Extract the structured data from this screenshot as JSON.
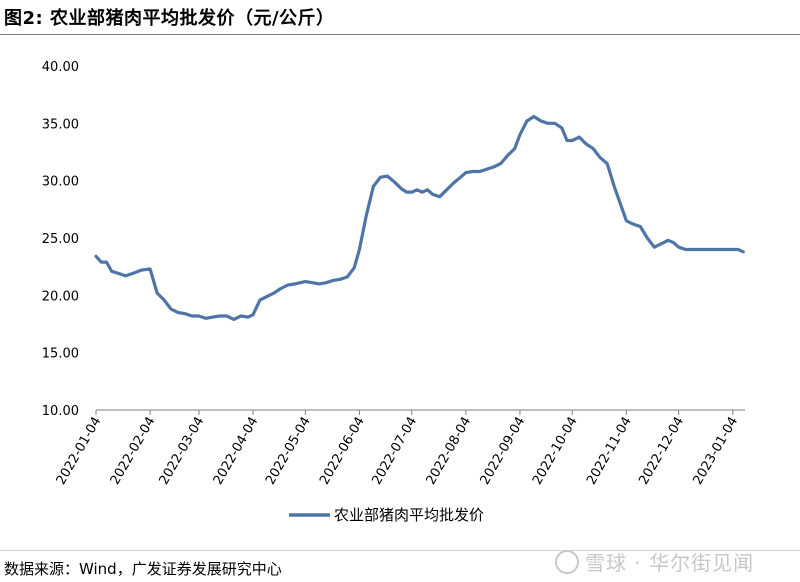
{
  "figure": {
    "title": "图2:  农业部猪肉平均批发价（元/公斤）",
    "source": "数据来源：Wind，广发证券发展研究中心",
    "watermark": "雪球 · 华尔街见闻"
  },
  "chart_data": {
    "type": "line",
    "title": "图2:  农业部猪肉平均批发价（元/公斤）",
    "ylabel": "",
    "xlabel": "",
    "ylim": [
      10,
      40
    ],
    "yticks": [
      "10.00",
      "15.00",
      "20.00",
      "25.00",
      "30.00",
      "35.00",
      "40.00"
    ],
    "xticks": [
      "2022-01-04",
      "2022-02-04",
      "2022-03-04",
      "2022-04-04",
      "2022-05-04",
      "2022-06-04",
      "2022-07-04",
      "2022-08-04",
      "2022-09-04",
      "2022-10-04",
      "2022-11-04",
      "2022-12-04",
      "2023-01-04"
    ],
    "grid": false,
    "legend_position": "bottom-center",
    "series": [
      {
        "name": "农业部猪肉平均批发价",
        "color": "#4f75a8",
        "x": [
          "2022-01-04",
          "2022-01-07",
          "2022-01-10",
          "2022-01-13",
          "2022-01-17",
          "2022-01-21",
          "2022-01-25",
          "2022-01-30",
          "2022-02-04",
          "2022-02-08",
          "2022-02-12",
          "2022-02-16",
          "2022-02-20",
          "2022-02-24",
          "2022-02-28",
          "2022-03-04",
          "2022-03-08",
          "2022-03-12",
          "2022-03-16",
          "2022-03-20",
          "2022-03-24",
          "2022-03-28",
          "2022-04-01",
          "2022-04-04",
          "2022-04-08",
          "2022-04-12",
          "2022-04-16",
          "2022-04-20",
          "2022-04-24",
          "2022-04-28",
          "2022-05-01",
          "2022-05-04",
          "2022-05-08",
          "2022-05-12",
          "2022-05-16",
          "2022-05-20",
          "2022-05-24",
          "2022-05-28",
          "2022-06-01",
          "2022-06-04",
          "2022-06-08",
          "2022-06-12",
          "2022-06-16",
          "2022-06-20",
          "2022-06-24",
          "2022-06-28",
          "2022-07-01",
          "2022-07-04",
          "2022-07-07",
          "2022-07-10",
          "2022-07-13",
          "2022-07-16",
          "2022-07-20",
          "2022-07-24",
          "2022-07-28",
          "2022-08-01",
          "2022-08-04",
          "2022-08-08",
          "2022-08-12",
          "2022-08-16",
          "2022-08-20",
          "2022-08-24",
          "2022-08-28",
          "2022-09-01",
          "2022-09-04",
          "2022-09-08",
          "2022-09-12",
          "2022-09-16",
          "2022-09-20",
          "2022-09-24",
          "2022-09-28",
          "2022-10-01",
          "2022-10-04",
          "2022-10-08",
          "2022-10-12",
          "2022-10-16",
          "2022-10-20",
          "2022-10-24",
          "2022-10-28",
          "2022-11-01",
          "2022-11-04",
          "2022-11-08",
          "2022-11-12",
          "2022-11-16",
          "2022-11-20",
          "2022-11-24",
          "2022-11-28",
          "2022-12-01",
          "2022-12-04",
          "2022-12-08",
          "2022-12-12",
          "2022-12-16",
          "2022-12-20",
          "2022-12-24",
          "2022-12-28",
          "2023-01-01",
          "2023-01-04",
          "2023-01-07",
          "2023-01-10"
        ],
        "values": [
          23.4,
          22.9,
          22.9,
          22.1,
          21.9,
          21.7,
          21.9,
          22.2,
          22.3,
          20.2,
          19.6,
          18.8,
          18.5,
          18.4,
          18.2,
          18.2,
          18.0,
          18.1,
          18.2,
          18.2,
          17.9,
          18.2,
          18.1,
          18.3,
          19.6,
          19.9,
          20.2,
          20.6,
          20.9,
          21.0,
          21.1,
          21.2,
          21.1,
          21.0,
          21.1,
          21.3,
          21.4,
          21.6,
          22.4,
          24.0,
          27.0,
          29.5,
          30.3,
          30.4,
          29.9,
          29.3,
          29.0,
          29.0,
          29.2,
          29.0,
          29.2,
          28.8,
          28.6,
          29.2,
          29.8,
          30.3,
          30.7,
          30.8,
          30.8,
          31.0,
          31.2,
          31.5,
          32.2,
          32.8,
          34.0,
          35.2,
          35.6,
          35.2,
          35.0,
          35.0,
          34.6,
          33.5,
          33.5,
          33.8,
          33.2,
          32.8,
          32.0,
          31.5,
          29.5,
          27.8,
          26.5,
          26.2,
          26.0,
          25.0,
          24.2,
          24.5,
          24.8,
          24.6,
          24.2,
          24.0,
          24.0,
          24.0,
          24.0,
          24.0,
          24.0,
          24.0,
          24.0,
          24.0,
          23.8
        ]
      }
    ]
  }
}
